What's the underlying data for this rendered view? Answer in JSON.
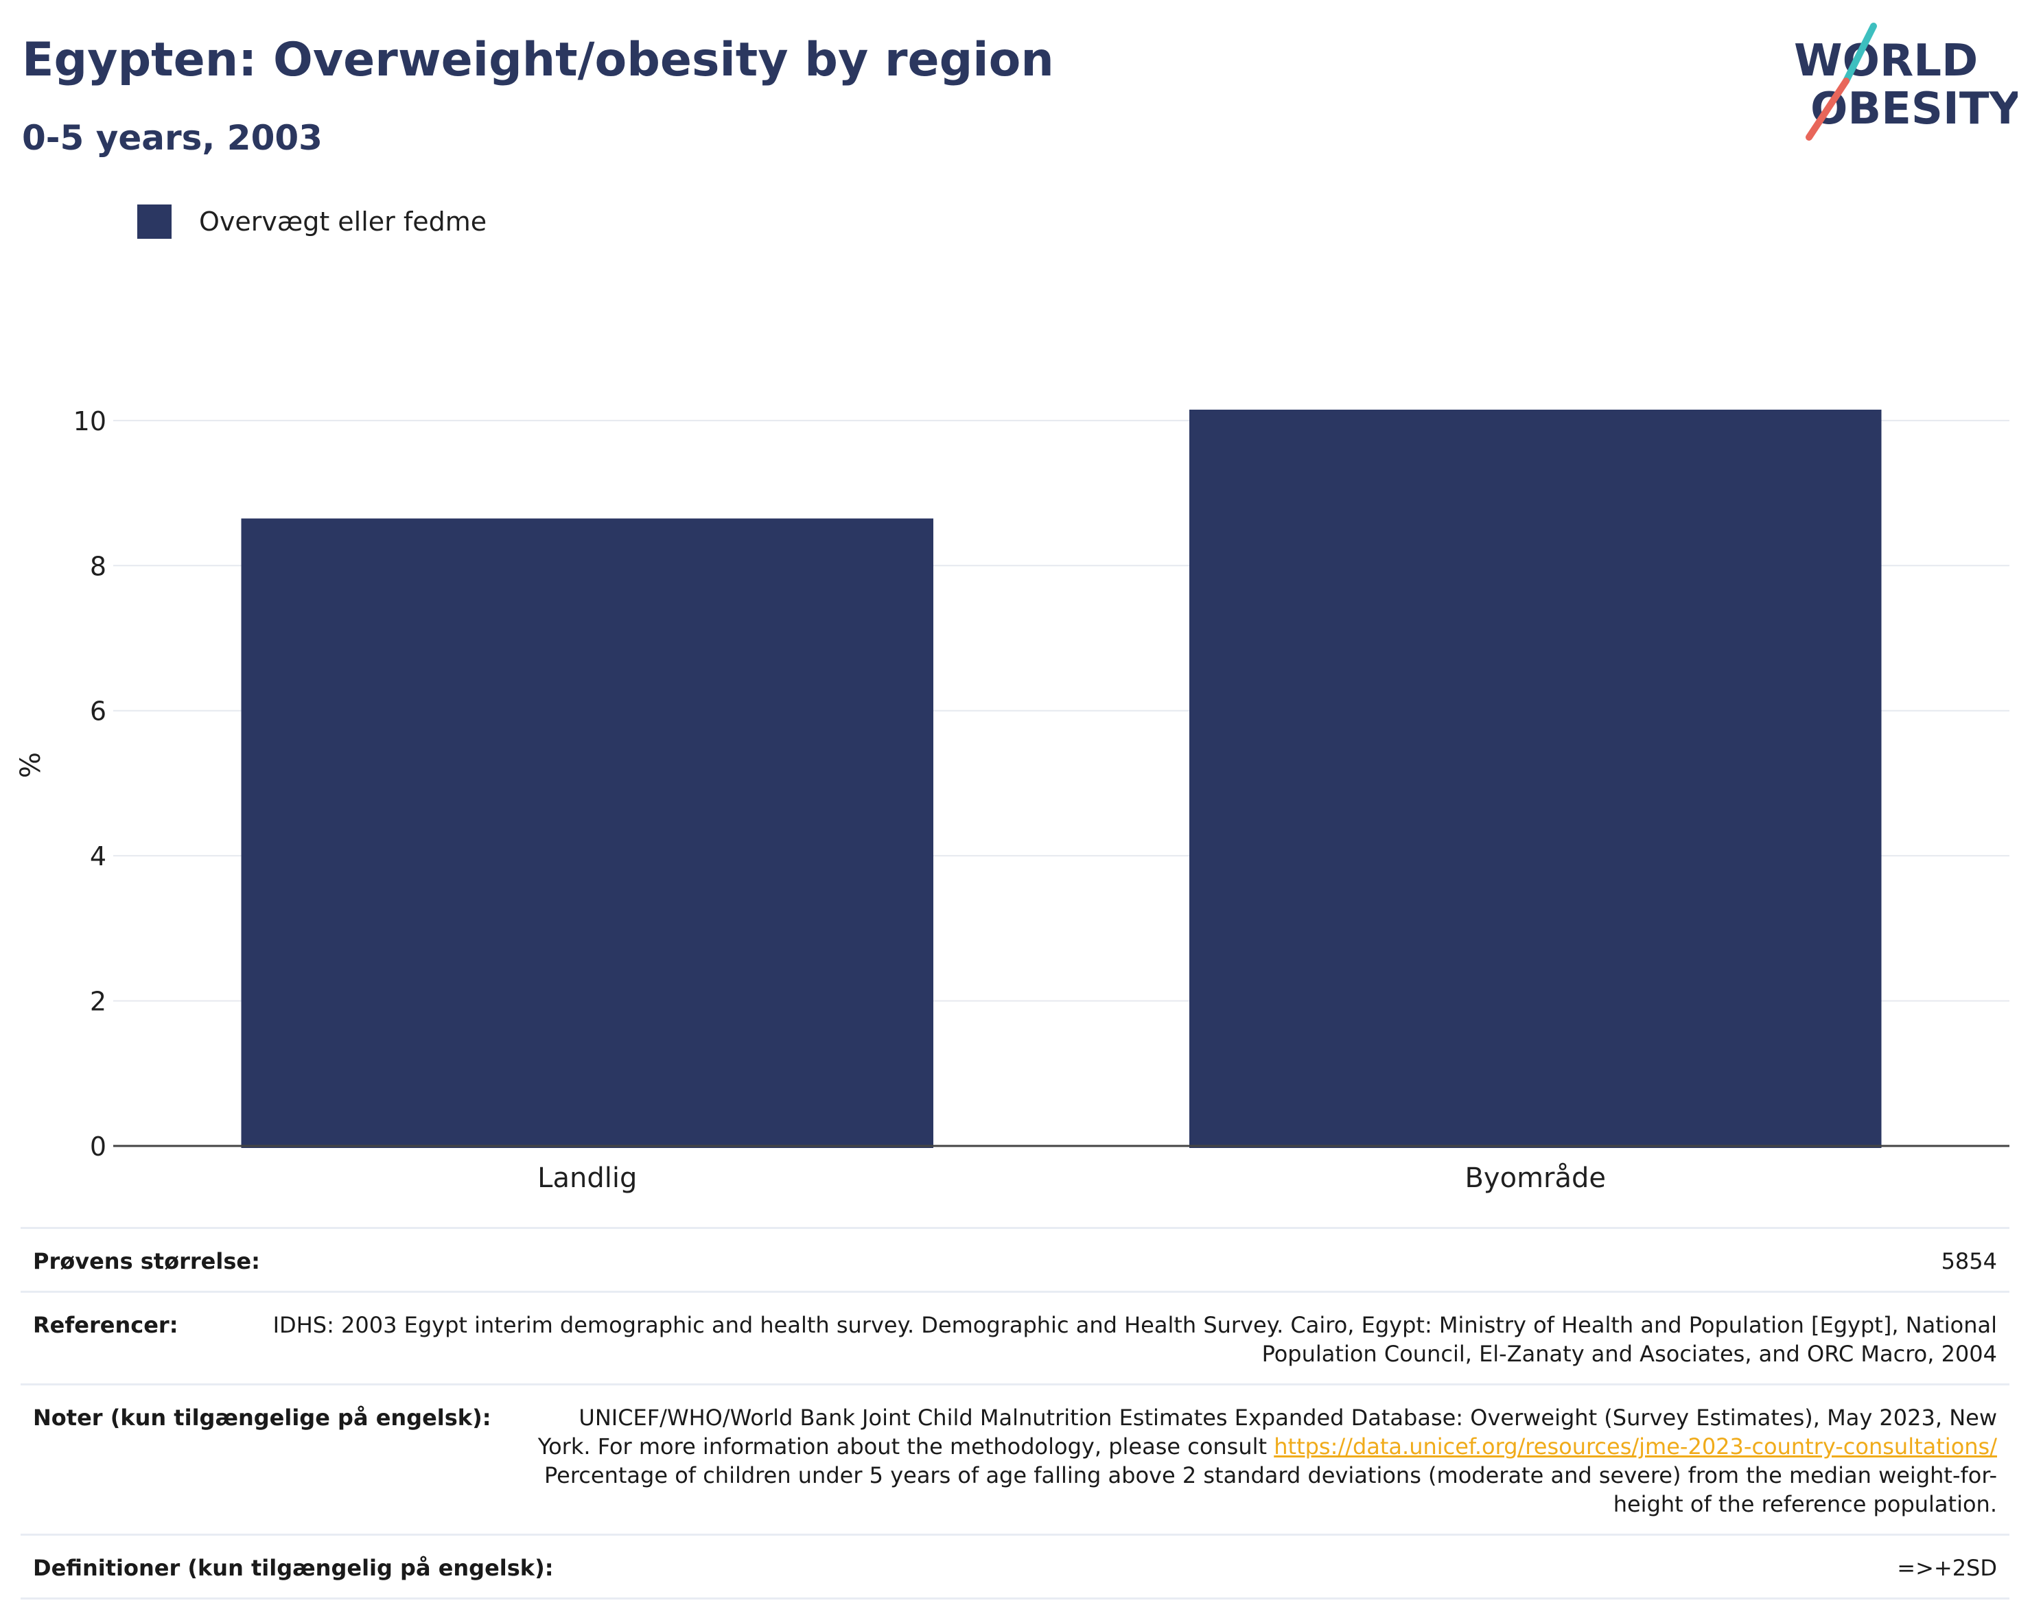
{
  "header": {
    "title": "Egypten: Overweight/obesity by region",
    "subtitle": "0-5 years, 2003"
  },
  "logo": {
    "line1": "WORLD",
    "line2": "OBESITY"
  },
  "colors": {
    "bar": "#2b3762",
    "title": "#2b375f",
    "accent_teal": "#3dbfbf",
    "accent_red": "#e8665a",
    "link": "#f0ab1a"
  },
  "chart_data": {
    "type": "bar",
    "categories": [
      "Landlig",
      "Byområde"
    ],
    "series": [
      {
        "name": "Overvægt eller fedme",
        "values": [
          8.65,
          10.15
        ]
      }
    ],
    "ylabel": "%",
    "xlabel": "",
    "ylim": [
      0,
      10.5
    ],
    "yticks": [
      0,
      2,
      4,
      6,
      8,
      10
    ],
    "grid": true,
    "legend": "top-left"
  },
  "footer": {
    "sample_label": "Prøvens størrelse:",
    "sample_value": "5854",
    "references_label": "Referencer:",
    "references_value": "IDHS: 2003 Egypt interim demographic and health survey. Demographic and Health Survey. Cairo, Egypt: Ministry of Health and Population [Egypt], National Population Council, El-Zanaty and Asociates, and ORC Macro, 2004",
    "notes_label": "Noter (kun tilgængelige på engelsk):",
    "notes_before": "UNICEF/WHO/World Bank Joint Child Malnutrition Estimates Expanded Database: Overweight (Survey Estimates), May 2023, New York. For more information about the methodology, please consult ",
    "notes_link": "https://data.unicef.org/resources/jme-2023-country-consultations/",
    "notes_after": " Percentage of children under 5 years of age falling above 2 standard deviations (moderate and severe) from the median weight-for-height of the reference population.",
    "definitions_label": "Definitioner (kun tilgængelig på engelsk):",
    "definitions_value": "=>+2SD"
  }
}
